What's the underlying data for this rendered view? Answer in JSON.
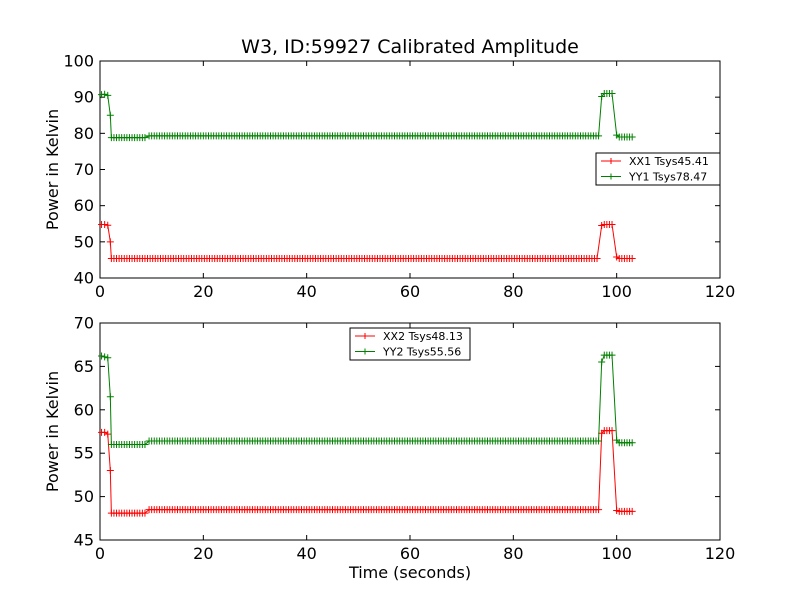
{
  "figure": {
    "title": "W3, ID:59927 Calibrated Amplitude",
    "xlabel": "Time (seconds)"
  },
  "chart_data": [
    {
      "type": "line",
      "ylabel": "Power in Kelvin",
      "xlim": [
        0,
        120
      ],
      "ylim": [
        40,
        100
      ],
      "xticks": [
        0,
        20,
        40,
        60,
        80,
        100,
        120
      ],
      "yticks": [
        40,
        50,
        60,
        70,
        80,
        90,
        100
      ],
      "legend": "right",
      "series": [
        {
          "name": "XX1 Tsys45.41",
          "color": "#ff0000",
          "segments": [
            {
              "type": "point",
              "x": 0.3,
              "y": 54.8
            },
            {
              "type": "point",
              "x": 0.9,
              "y": 54.8
            },
            {
              "type": "point",
              "x": 1.5,
              "y": 54.6
            },
            {
              "type": "point",
              "x": 2.0,
              "y": 50.0
            },
            {
              "type": "flat",
              "x0": 2.2,
              "x1": 96.6,
              "y": 45.4
            },
            {
              "type": "point",
              "x": 97.1,
              "y": 54.5
            },
            {
              "type": "flat",
              "x0": 97.6,
              "x1": 99.5,
              "y": 54.8
            },
            {
              "type": "point",
              "x": 100.0,
              "y": 45.8
            },
            {
              "type": "flat",
              "x0": 100.5,
              "x1": 103.0,
              "y": 45.4
            }
          ]
        },
        {
          "name": "YY1 Tsys78.47",
          "color": "#008000",
          "segments": [
            {
              "type": "point",
              "x": 0.3,
              "y": 90.7
            },
            {
              "type": "point",
              "x": 0.9,
              "y": 90.8
            },
            {
              "type": "point",
              "x": 1.5,
              "y": 90.5
            },
            {
              "type": "point",
              "x": 2.0,
              "y": 85.0
            },
            {
              "type": "flat",
              "x0": 2.2,
              "x1": 9.0,
              "y": 78.8
            },
            {
              "type": "flat",
              "x0": 9.5,
              "x1": 96.6,
              "y": 79.3
            },
            {
              "type": "point",
              "x": 97.1,
              "y": 90.2
            },
            {
              "type": "flat",
              "x0": 97.6,
              "x1": 99.5,
              "y": 91.0
            },
            {
              "type": "point",
              "x": 100.0,
              "y": 79.5
            },
            {
              "type": "flat",
              "x0": 100.5,
              "x1": 103.0,
              "y": 79.0
            }
          ]
        }
      ]
    },
    {
      "type": "line",
      "ylabel": "Power in Kelvin",
      "xlabel": "Time (seconds)",
      "xlim": [
        0,
        120
      ],
      "ylim": [
        45,
        70
      ],
      "xticks": [
        0,
        20,
        40,
        60,
        80,
        100,
        120
      ],
      "yticks": [
        45,
        50,
        55,
        60,
        65,
        70
      ],
      "legend": "top-center",
      "series": [
        {
          "name": "XX2 Tsys48.13",
          "color": "#ff0000",
          "segments": [
            {
              "type": "point",
              "x": 0.3,
              "y": 57.4
            },
            {
              "type": "point",
              "x": 0.9,
              "y": 57.4
            },
            {
              "type": "point",
              "x": 1.5,
              "y": 57.2
            },
            {
              "type": "point",
              "x": 2.0,
              "y": 53.0
            },
            {
              "type": "flat",
              "x0": 2.2,
              "x1": 9.0,
              "y": 48.1
            },
            {
              "type": "flat",
              "x0": 9.5,
              "x1": 96.6,
              "y": 48.5
            },
            {
              "type": "point",
              "x": 97.1,
              "y": 57.3
            },
            {
              "type": "flat",
              "x0": 97.6,
              "x1": 99.5,
              "y": 57.6
            },
            {
              "type": "point",
              "x": 100.0,
              "y": 48.4
            },
            {
              "type": "flat",
              "x0": 100.5,
              "x1": 103.0,
              "y": 48.3
            }
          ]
        },
        {
          "name": "YY2 Tsys55.56",
          "color": "#008000",
          "segments": [
            {
              "type": "point",
              "x": 0.3,
              "y": 66.2
            },
            {
              "type": "point",
              "x": 0.9,
              "y": 66.1
            },
            {
              "type": "point",
              "x": 1.5,
              "y": 66.0
            },
            {
              "type": "point",
              "x": 2.0,
              "y": 61.5
            },
            {
              "type": "flat",
              "x0": 2.2,
              "x1": 9.0,
              "y": 56.0
            },
            {
              "type": "flat",
              "x0": 9.5,
              "x1": 96.6,
              "y": 56.4
            },
            {
              "type": "point",
              "x": 97.1,
              "y": 65.5
            },
            {
              "type": "flat",
              "x0": 97.6,
              "x1": 99.5,
              "y": 66.3
            },
            {
              "type": "point",
              "x": 100.0,
              "y": 56.5
            },
            {
              "type": "flat",
              "x0": 100.5,
              "x1": 103.0,
              "y": 56.2
            }
          ]
        }
      ]
    }
  ]
}
